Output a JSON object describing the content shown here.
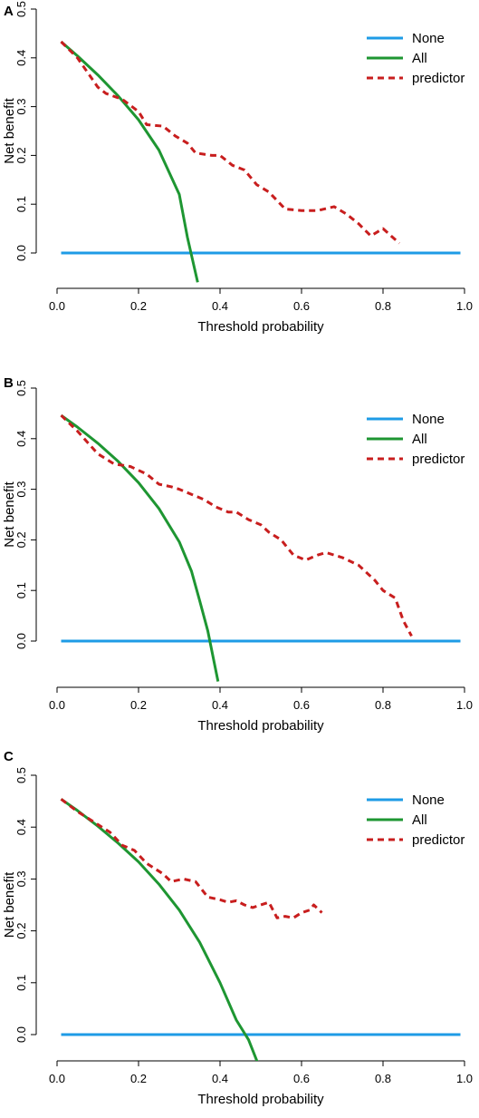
{
  "chart_data": [
    {
      "type": "line",
      "panel_label": "A",
      "xlabel": "Threshold probability",
      "ylabel": "Net benefit",
      "xlim": [
        0,
        1
      ],
      "ylim": [
        -0.06,
        0.5
      ],
      "xticks": [
        "0.0",
        "0.2",
        "0.4",
        "0.6",
        "0.8",
        "1.0"
      ],
      "yticks": [
        "0.0",
        "0.1",
        "0.2",
        "0.3",
        "0.4",
        "0.5"
      ],
      "legend_position": "top-right",
      "series": [
        {
          "name": "None",
          "color": "#1E9BE6",
          "style": "solid",
          "points": [
            [
              0.01,
              0
            ],
            [
              0.99,
              0
            ]
          ]
        },
        {
          "name": "All",
          "color": "#1E9632",
          "style": "solid",
          "points": [
            [
              0.01,
              0.433
            ],
            [
              0.05,
              0.404
            ],
            [
              0.1,
              0.365
            ],
            [
              0.15,
              0.322
            ],
            [
              0.2,
              0.273
            ],
            [
              0.25,
              0.211
            ],
            [
              0.3,
              0.12
            ],
            [
              0.32,
              0.032
            ],
            [
              0.345,
              -0.06
            ]
          ]
        },
        {
          "name": "predictor",
          "color": "#C81E1E",
          "style": "dashed",
          "points": [
            [
              0.01,
              0.433
            ],
            [
              0.05,
              0.4
            ],
            [
              0.1,
              0.34
            ],
            [
              0.12,
              0.327
            ],
            [
              0.16,
              0.315
            ],
            [
              0.2,
              0.29
            ],
            [
              0.22,
              0.263
            ],
            [
              0.26,
              0.26
            ],
            [
              0.29,
              0.24
            ],
            [
              0.32,
              0.225
            ],
            [
              0.34,
              0.205
            ],
            [
              0.38,
              0.2
            ],
            [
              0.4,
              0.2
            ],
            [
              0.43,
              0.18
            ],
            [
              0.46,
              0.17
            ],
            [
              0.49,
              0.14
            ],
            [
              0.52,
              0.125
            ],
            [
              0.56,
              0.09
            ],
            [
              0.6,
              0.087
            ],
            [
              0.64,
              0.087
            ],
            [
              0.68,
              0.095
            ],
            [
              0.71,
              0.08
            ],
            [
              0.74,
              0.06
            ],
            [
              0.77,
              0.035
            ],
            [
              0.8,
              0.05
            ],
            [
              0.82,
              0.035
            ],
            [
              0.84,
              0.02
            ]
          ]
        }
      ]
    },
    {
      "type": "line",
      "panel_label": "B",
      "xlabel": "Threshold probability",
      "ylabel": "Net benefit",
      "xlim": [
        0,
        1
      ],
      "ylim": [
        -0.08,
        0.5
      ],
      "xticks": [
        "0.0",
        "0.2",
        "0.4",
        "0.6",
        "0.8",
        "1.0"
      ],
      "yticks": [
        "0.0",
        "0.1",
        "0.2",
        "0.3",
        "0.4",
        "0.5"
      ],
      "legend_position": "top-right",
      "series": [
        {
          "name": "None",
          "color": "#1E9BE6",
          "style": "solid",
          "points": [
            [
              0.01,
              0
            ],
            [
              0.99,
              0
            ]
          ]
        },
        {
          "name": "All",
          "color": "#1E9632",
          "style": "solid",
          "points": [
            [
              0.01,
              0.446
            ],
            [
              0.05,
              0.423
            ],
            [
              0.1,
              0.391
            ],
            [
              0.15,
              0.355
            ],
            [
              0.2,
              0.313
            ],
            [
              0.25,
              0.262
            ],
            [
              0.3,
              0.196
            ],
            [
              0.33,
              0.138
            ],
            [
              0.35,
              0.08
            ],
            [
              0.37,
              0.02
            ],
            [
              0.395,
              -0.08
            ]
          ]
        },
        {
          "name": "predictor",
          "color": "#C81E1E",
          "style": "dashed",
          "points": [
            [
              0.01,
              0.446
            ],
            [
              0.05,
              0.415
            ],
            [
              0.1,
              0.37
            ],
            [
              0.14,
              0.35
            ],
            [
              0.18,
              0.345
            ],
            [
              0.22,
              0.33
            ],
            [
              0.25,
              0.31
            ],
            [
              0.28,
              0.305
            ],
            [
              0.3,
              0.3
            ],
            [
              0.33,
              0.29
            ],
            [
              0.36,
              0.28
            ],
            [
              0.39,
              0.265
            ],
            [
              0.42,
              0.255
            ],
            [
              0.44,
              0.255
            ],
            [
              0.47,
              0.24
            ],
            [
              0.5,
              0.23
            ],
            [
              0.52,
              0.215
            ],
            [
              0.55,
              0.2
            ],
            [
              0.58,
              0.17
            ],
            [
              0.61,
              0.16
            ],
            [
              0.64,
              0.17
            ],
            [
              0.66,
              0.175
            ],
            [
              0.7,
              0.165
            ],
            [
              0.74,
              0.15
            ],
            [
              0.78,
              0.12
            ],
            [
              0.8,
              0.1
            ],
            [
              0.83,
              0.085
            ],
            [
              0.85,
              0.04
            ],
            [
              0.87,
              0.01
            ]
          ]
        }
      ]
    },
    {
      "type": "line",
      "panel_label": "C",
      "xlabel": "Threshold probability",
      "ylabel": "Net benefit",
      "xlim": [
        0,
        1
      ],
      "ylim": [
        -0.06,
        0.5
      ],
      "xticks": [
        "0.0",
        "0.2",
        "0.4",
        "0.6",
        "0.8",
        "1.0"
      ],
      "yticks": [
        "0.0",
        "0.1",
        "0.2",
        "0.3",
        "0.4",
        "0.5"
      ],
      "legend_position": "top-right",
      "series": [
        {
          "name": "None",
          "color": "#1E9BE6",
          "style": "solid",
          "points": [
            [
              0.01,
              0
            ],
            [
              0.99,
              0
            ]
          ]
        },
        {
          "name": "All",
          "color": "#1E9632",
          "style": "solid",
          "points": [
            [
              0.01,
              0.454
            ],
            [
              0.05,
              0.432
            ],
            [
              0.1,
              0.402
            ],
            [
              0.15,
              0.369
            ],
            [
              0.2,
              0.333
            ],
            [
              0.25,
              0.29
            ],
            [
              0.3,
              0.24
            ],
            [
              0.35,
              0.178
            ],
            [
              0.4,
              0.1
            ],
            [
              0.44,
              0.028
            ],
            [
              0.47,
              -0.01
            ],
            [
              0.495,
              -0.06
            ]
          ]
        },
        {
          "name": "predictor",
          "color": "#C81E1E",
          "style": "dashed",
          "points": [
            [
              0.01,
              0.454
            ],
            [
              0.05,
              0.43
            ],
            [
              0.1,
              0.405
            ],
            [
              0.13,
              0.39
            ],
            [
              0.16,
              0.365
            ],
            [
              0.19,
              0.355
            ],
            [
              0.22,
              0.33
            ],
            [
              0.26,
              0.31
            ],
            [
              0.28,
              0.295
            ],
            [
              0.31,
              0.3
            ],
            [
              0.34,
              0.295
            ],
            [
              0.37,
              0.265
            ],
            [
              0.4,
              0.26
            ],
            [
              0.42,
              0.255
            ],
            [
              0.44,
              0.258
            ],
            [
              0.46,
              0.25
            ],
            [
              0.48,
              0.245
            ],
            [
              0.5,
              0.25
            ],
            [
              0.52,
              0.255
            ],
            [
              0.54,
              0.225
            ],
            [
              0.56,
              0.228
            ],
            [
              0.58,
              0.225
            ],
            [
              0.6,
              0.235
            ],
            [
              0.62,
              0.24
            ],
            [
              0.63,
              0.25
            ],
            [
              0.65,
              0.235
            ]
          ]
        }
      ]
    }
  ]
}
